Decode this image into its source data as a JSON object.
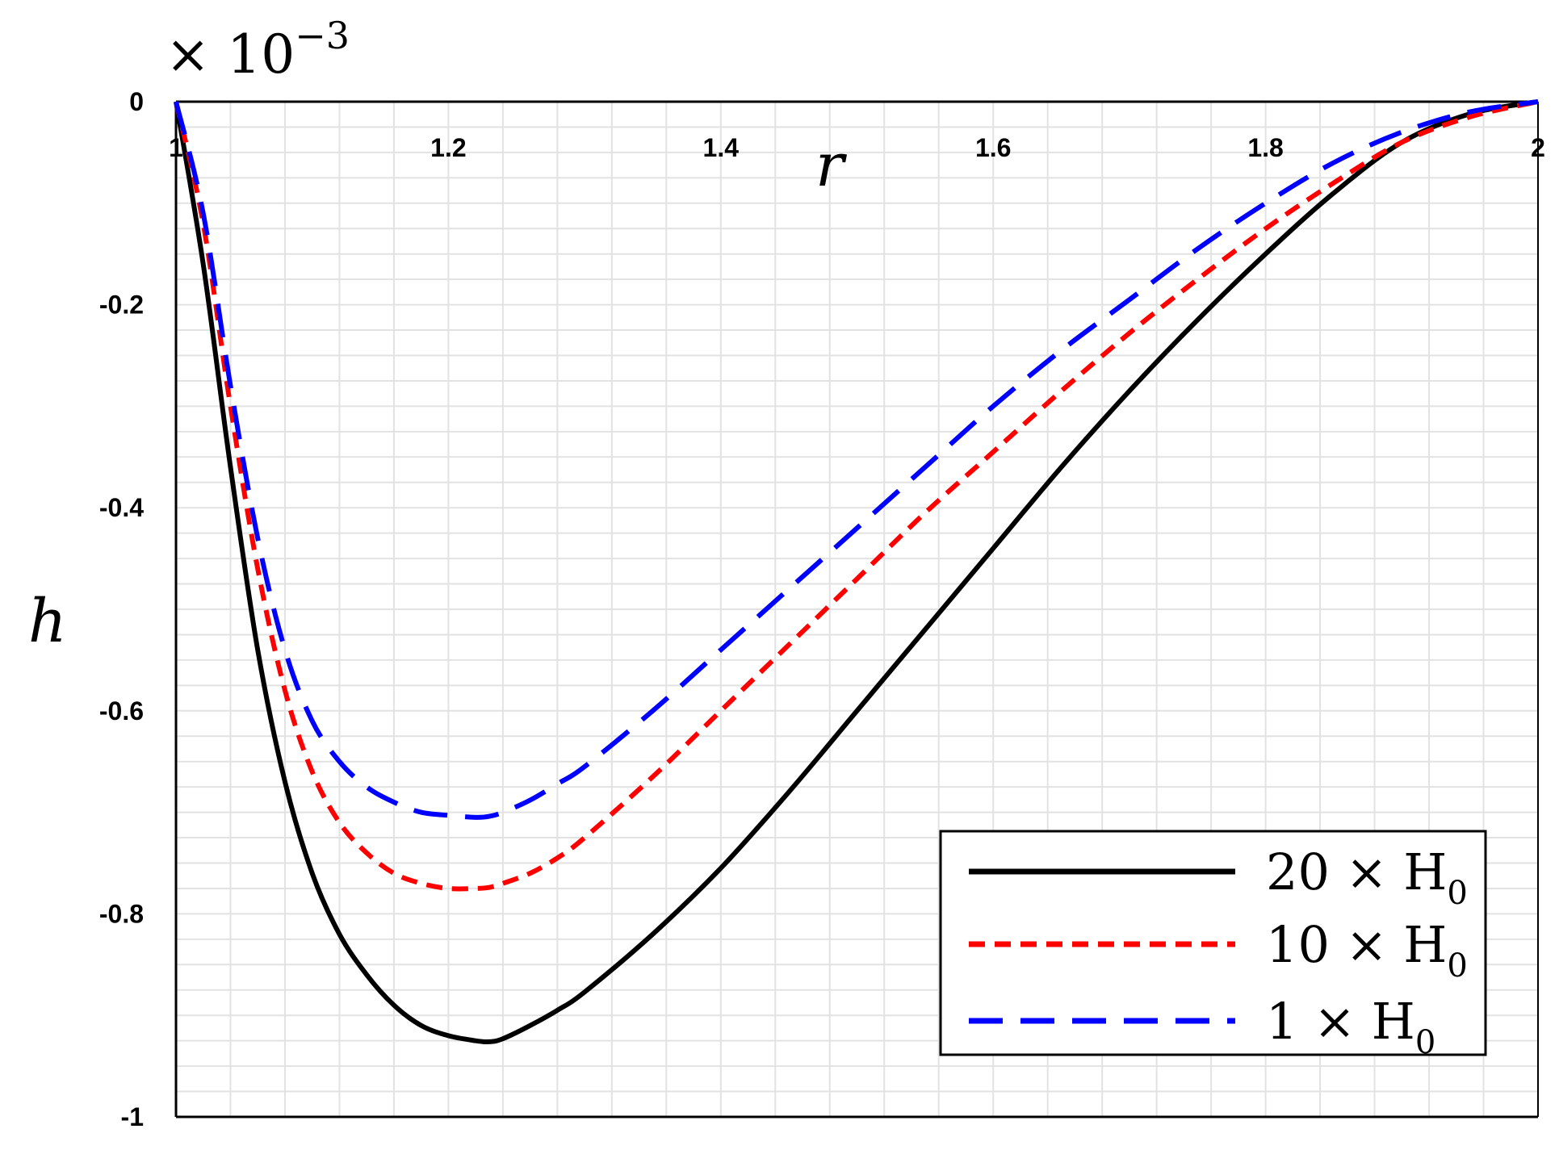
{
  "chart_data": {
    "type": "line",
    "xlabel": "r",
    "ylabel": "h",
    "scale_factor": "× 10",
    "scale_exponent": "−3",
    "xlim": [
      1,
      2
    ],
    "ylim": [
      -1,
      0
    ],
    "grid": true,
    "legend_position": "bottom-right",
    "x_ticks": [
      {
        "value": 1,
        "label": "1"
      },
      {
        "value": 1.2,
        "label": "1.2"
      },
      {
        "value": 1.4,
        "label": "1.4"
      },
      {
        "value": 1.6,
        "label": "1.6"
      },
      {
        "value": 1.8,
        "label": "1.8"
      },
      {
        "value": 2,
        "label": "2"
      }
    ],
    "y_ticks": [
      {
        "value": 0,
        "label": "0"
      },
      {
        "value": -0.2,
        "label": "-0.2"
      },
      {
        "value": -0.4,
        "label": "-0.4"
      },
      {
        "value": -0.6,
        "label": "-0.6"
      },
      {
        "value": -0.8,
        "label": "-0.8"
      },
      {
        "value": -1,
        "label": "-1"
      }
    ],
    "series": [
      {
        "name": "20 × H0",
        "legend_main": "20 × H",
        "legend_sub": "0",
        "color": "#000000",
        "dash": "solid",
        "x": [
          1.0,
          1.02,
          1.04,
          1.06,
          1.08,
          1.1,
          1.12,
          1.14,
          1.16,
          1.18,
          1.2,
          1.22,
          1.23,
          1.24,
          1.26,
          1.28,
          1.3,
          1.35,
          1.4,
          1.45,
          1.5,
          1.55,
          1.6,
          1.65,
          1.7,
          1.75,
          1.8,
          1.85,
          1.9,
          1.95,
          2.0
        ],
        "y": [
          0.0,
          -0.16,
          -0.36,
          -0.54,
          -0.67,
          -0.76,
          -0.82,
          -0.86,
          -0.89,
          -0.91,
          -0.92,
          -0.925,
          -0.926,
          -0.923,
          -0.91,
          -0.895,
          -0.877,
          -0.82,
          -0.755,
          -0.68,
          -0.6,
          -0.52,
          -0.44,
          -0.36,
          -0.285,
          -0.215,
          -0.15,
          -0.09,
          -0.04,
          -0.012,
          0.0
        ]
      },
      {
        "name": "10 × H0",
        "legend_main": "10 × H",
        "legend_sub": "0",
        "color": "#ff0000",
        "dash": "short-dash",
        "x": [
          1.0,
          1.02,
          1.04,
          1.06,
          1.08,
          1.1,
          1.12,
          1.14,
          1.16,
          1.18,
          1.2,
          1.22,
          1.23,
          1.24,
          1.26,
          1.28,
          1.3,
          1.35,
          1.4,
          1.45,
          1.5,
          1.55,
          1.6,
          1.65,
          1.7,
          1.75,
          1.8,
          1.85,
          1.9,
          1.95,
          2.0
        ],
        "y": [
          0.0,
          -0.12,
          -0.3,
          -0.46,
          -0.58,
          -0.66,
          -0.71,
          -0.74,
          -0.76,
          -0.77,
          -0.775,
          -0.775,
          -0.774,
          -0.77,
          -0.76,
          -0.745,
          -0.725,
          -0.665,
          -0.6,
          -0.535,
          -0.47,
          -0.405,
          -0.345,
          -0.285,
          -0.228,
          -0.175,
          -0.125,
          -0.08,
          -0.04,
          -0.015,
          0.0
        ]
      },
      {
        "name": "1 × H0",
        "legend_main": "1 × H",
        "legend_sub": "0",
        "color": "#0000ff",
        "dash": "long-dash",
        "x": [
          1.0,
          1.02,
          1.04,
          1.06,
          1.08,
          1.1,
          1.12,
          1.14,
          1.16,
          1.18,
          1.2,
          1.22,
          1.23,
          1.24,
          1.26,
          1.28,
          1.3,
          1.35,
          1.4,
          1.45,
          1.5,
          1.55,
          1.6,
          1.65,
          1.7,
          1.75,
          1.8,
          1.85,
          1.9,
          1.95,
          2.0
        ],
        "y": [
          0.0,
          -0.11,
          -0.28,
          -0.43,
          -0.54,
          -0.61,
          -0.65,
          -0.675,
          -0.69,
          -0.7,
          -0.703,
          -0.705,
          -0.704,
          -0.7,
          -0.688,
          -0.672,
          -0.655,
          -0.6,
          -0.54,
          -0.48,
          -0.42,
          -0.36,
          -0.3,
          -0.245,
          -0.195,
          -0.145,
          -0.1,
          -0.06,
          -0.03,
          -0.01,
          0.0
        ]
      }
    ]
  }
}
